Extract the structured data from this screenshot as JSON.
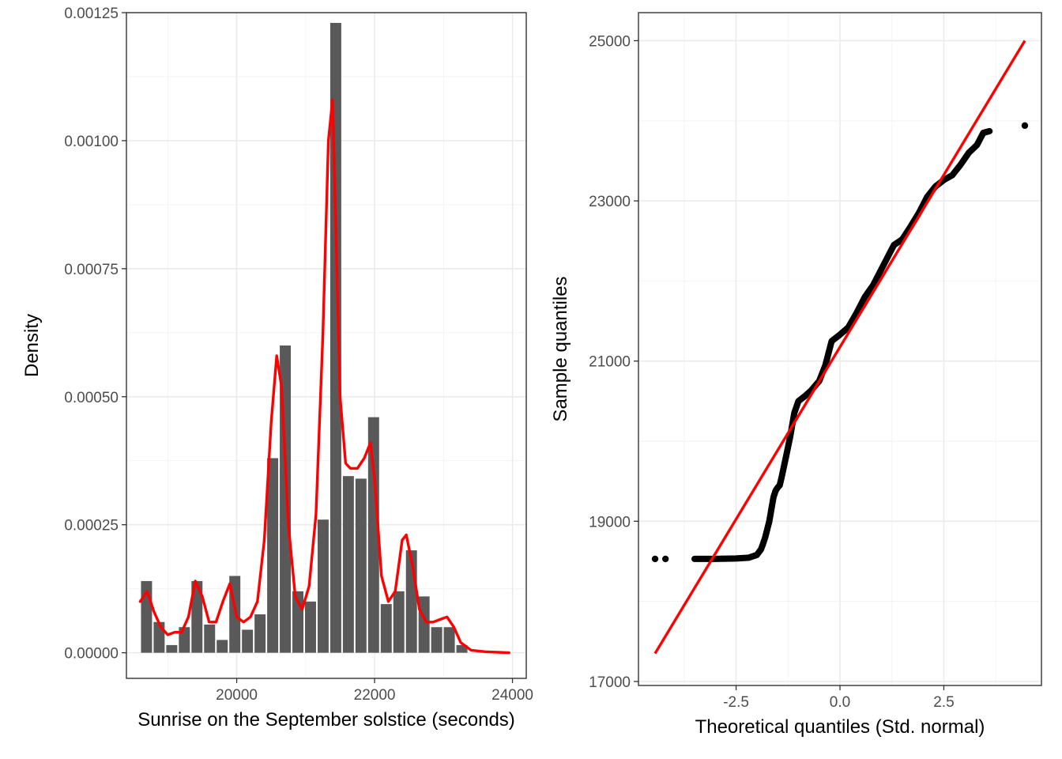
{
  "chart_data": [
    {
      "type": "bar",
      "subtype": "histogram-with-density",
      "xlabel": "Sunrise on the September solstice (seconds)",
      "ylabel": "Density",
      "xlim": [
        18400,
        24200
      ],
      "ylim": [
        -5e-05,
        0.00125
      ],
      "x_ticks": [
        {
          "value": 20000,
          "label": "20000"
        },
        {
          "value": 22000,
          "label": "22000"
        },
        {
          "value": 24000,
          "label": "24000"
        }
      ],
      "y_ticks": [
        {
          "value": 0,
          "label": "0.00000"
        },
        {
          "value": 0.00025,
          "label": "0.00025"
        },
        {
          "value": 0.0005,
          "label": "0.00050"
        },
        {
          "value": 0.00075,
          "label": "0.00075"
        },
        {
          "value": 0.001,
          "label": "0.00100"
        },
        {
          "value": 0.00125,
          "label": "0.00125"
        }
      ],
      "grid": true,
      "bin_width": 183,
      "bar_color": "#595959",
      "bins": [
        {
          "x": 18600,
          "density": 0.00014
        },
        {
          "x": 18783,
          "density": 6e-05
        },
        {
          "x": 18966,
          "density": 1.5e-05
        },
        {
          "x": 19149,
          "density": 5e-05
        },
        {
          "x": 19332,
          "density": 0.00014
        },
        {
          "x": 19515,
          "density": 5.5e-05
        },
        {
          "x": 19698,
          "density": 2.5e-05
        },
        {
          "x": 19881,
          "density": 0.00015
        },
        {
          "x": 20064,
          "density": 4.5e-05
        },
        {
          "x": 20247,
          "density": 7.5e-05
        },
        {
          "x": 20430,
          "density": 0.00038
        },
        {
          "x": 20613,
          "density": 0.0006
        },
        {
          "x": 20796,
          "density": 0.00012
        },
        {
          "x": 20979,
          "density": 0.0001
        },
        {
          "x": 21162,
          "density": 0.00026
        },
        {
          "x": 21345,
          "density": 0.00123
        },
        {
          "x": 21528,
          "density": 0.000345
        },
        {
          "x": 21711,
          "density": 0.00034
        },
        {
          "x": 21894,
          "density": 0.00046
        },
        {
          "x": 22077,
          "density": 9.5e-05
        },
        {
          "x": 22260,
          "density": 0.00012
        },
        {
          "x": 22443,
          "density": 0.0002
        },
        {
          "x": 22626,
          "density": 0.00011
        },
        {
          "x": 22809,
          "density": 5e-05
        },
        {
          "x": 22992,
          "density": 5e-05
        },
        {
          "x": 23175,
          "density": 1.5e-05
        }
      ],
      "density_line": {
        "color": "#ff0000",
        "points": [
          [
            18600,
            0.0001
          ],
          [
            18700,
            0.00012
          ],
          [
            18800,
            8e-05
          ],
          [
            18900,
            5e-05
          ],
          [
            19000,
            3.5e-05
          ],
          [
            19100,
            4e-05
          ],
          [
            19200,
            4e-05
          ],
          [
            19300,
            7e-05
          ],
          [
            19400,
            0.00014
          ],
          [
            19500,
            0.00011
          ],
          [
            19600,
            6e-05
          ],
          [
            19700,
            6e-05
          ],
          [
            19800,
            0.0001
          ],
          [
            19900,
            0.000135
          ],
          [
            20000,
            7e-05
          ],
          [
            20100,
            6e-05
          ],
          [
            20200,
            7e-05
          ],
          [
            20300,
            0.0001
          ],
          [
            20400,
            0.00022
          ],
          [
            20500,
            0.00045
          ],
          [
            20580,
            0.00058
          ],
          [
            20650,
            0.00052
          ],
          [
            20750,
            0.00025
          ],
          [
            20850,
            0.00011
          ],
          [
            20950,
            8.5e-05
          ],
          [
            21050,
            0.00013
          ],
          [
            21150,
            0.00027
          ],
          [
            21250,
            0.00062
          ],
          [
            21330,
            0.001
          ],
          [
            21390,
            0.00108
          ],
          [
            21440,
            0.00082
          ],
          [
            21500,
            0.0005
          ],
          [
            21580,
            0.00037
          ],
          [
            21650,
            0.00036
          ],
          [
            21750,
            0.00036
          ],
          [
            21850,
            0.00038
          ],
          [
            21940,
            0.00041
          ],
          [
            22000,
            0.00034
          ],
          [
            22100,
            0.00015
          ],
          [
            22200,
            0.0001
          ],
          [
            22300,
            0.00012
          ],
          [
            22400,
            0.00022
          ],
          [
            22460,
            0.00023
          ],
          [
            22550,
            0.00017
          ],
          [
            22650,
            8.5e-05
          ],
          [
            22750,
            6e-05
          ],
          [
            22850,
            6e-05
          ],
          [
            22950,
            6.5e-05
          ],
          [
            23050,
            7e-05
          ],
          [
            23150,
            5e-05
          ],
          [
            23250,
            2e-05
          ],
          [
            23400,
            5e-06
          ],
          [
            23600,
            2e-06
          ],
          [
            23950,
            0.0
          ]
        ]
      }
    },
    {
      "type": "scatter",
      "subtype": "qq-plot",
      "xlabel": "Theoretical quantiles (Std. normal)",
      "ylabel": "Sample quantiles",
      "xlim": [
        -4.85,
        4.85
      ],
      "ylim": [
        16950,
        25350
      ],
      "x_ticks": [
        {
          "value": -2.5,
          "label": "-2.5"
        },
        {
          "value": 0,
          "label": "0.0"
        },
        {
          "value": 2.5,
          "label": "2.5"
        }
      ],
      "y_ticks": [
        {
          "value": 17000,
          "label": "17000"
        },
        {
          "value": 19000,
          "label": "19000"
        },
        {
          "value": 21000,
          "label": "21000"
        },
        {
          "value": 23000,
          "label": "23000"
        },
        {
          "value": 25000,
          "label": "25000"
        }
      ],
      "grid": true,
      "point_color": "#000000",
      "sample_curve": [
        [
          -4.45,
          18530
        ],
        [
          -4.2,
          18530
        ],
        [
          -3.5,
          18530
        ],
        [
          -3.0,
          18530
        ],
        [
          -2.5,
          18535
        ],
        [
          -2.2,
          18545
        ],
        [
          -2.0,
          18580
        ],
        [
          -1.9,
          18650
        ],
        [
          -1.85,
          18720
        ],
        [
          -1.8,
          18800
        ],
        [
          -1.75,
          18900
        ],
        [
          -1.7,
          19000
        ],
        [
          -1.65,
          19150
        ],
        [
          -1.6,
          19300
        ],
        [
          -1.55,
          19380
        ],
        [
          -1.5,
          19420
        ],
        [
          -1.45,
          19450
        ],
        [
          -1.4,
          19560
        ],
        [
          -1.3,
          19800
        ],
        [
          -1.2,
          20050
        ],
        [
          -1.1,
          20350
        ],
        [
          -1.0,
          20500
        ],
        [
          -0.85,
          20560
        ],
        [
          -0.7,
          20630
        ],
        [
          -0.5,
          20750
        ],
        [
          -0.35,
          20950
        ],
        [
          -0.2,
          21250
        ],
        [
          0.0,
          21330
        ],
        [
          0.2,
          21420
        ],
        [
          0.4,
          21600
        ],
        [
          0.6,
          21800
        ],
        [
          0.8,
          21950
        ],
        [
          1.0,
          22150
        ],
        [
          1.2,
          22350
        ],
        [
          1.3,
          22450
        ],
        [
          1.5,
          22520
        ],
        [
          1.7,
          22680
        ],
        [
          1.9,
          22850
        ],
        [
          2.1,
          23050
        ],
        [
          2.3,
          23180
        ],
        [
          2.5,
          23260
        ],
        [
          2.7,
          23320
        ],
        [
          2.9,
          23450
        ],
        [
          3.1,
          23600
        ],
        [
          3.3,
          23700
        ],
        [
          3.45,
          23850
        ],
        [
          3.6,
          23870
        ],
        [
          4.0,
          23880
        ],
        [
          4.25,
          23880
        ],
        [
          4.45,
          23940
        ]
      ],
      "isolated_points": [
        [
          -4.45,
          18530
        ],
        [
          -4.2,
          18530
        ],
        [
          4.45,
          23940
        ]
      ],
      "reference_line": {
        "color": "#ff0000",
        "from": [
          -4.45,
          17350
        ],
        "to": [
          4.45,
          25000
        ]
      }
    }
  ]
}
